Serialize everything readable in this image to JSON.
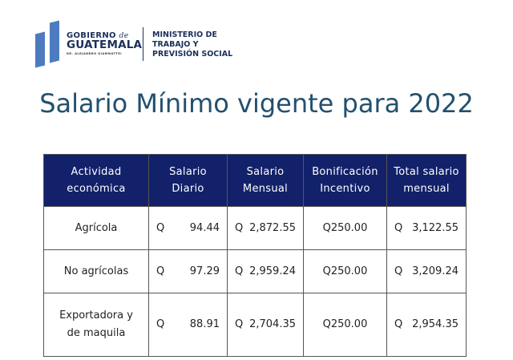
{
  "logo": {
    "gobierno": "GOBIERNO",
    "de": "de",
    "guatemala": "GUATEMALA",
    "president": "DR. ALEJANDRO GIAMMATTEI",
    "ministry": [
      "MINISTERIO DE",
      "TRABAJO Y",
      "PREVISIÓN SOCIAL"
    ]
  },
  "title": "Salario Mínimo vigente para 2022",
  "table": {
    "headers": [
      [
        "Actividad",
        "económica"
      ],
      [
        "Salario",
        "Diario"
      ],
      [
        "Salario",
        "Mensual"
      ],
      [
        "Bonificación",
        "Incentivo"
      ],
      [
        "Total salario",
        "mensual"
      ]
    ],
    "rows": [
      {
        "activity": [
          "Agrícola"
        ],
        "diario": "94.44",
        "mensual": "2,872.55",
        "bonif": "Q250.00",
        "total": "3,122.55"
      },
      {
        "activity": [
          "No agrícolas"
        ],
        "diario": "97.29",
        "mensual": "2,959.24",
        "bonif": "Q250.00",
        "total": "3,209.24"
      },
      {
        "activity": [
          "Exportadora y",
          "de maquila"
        ],
        "diario": "88.91",
        "mensual": "2,704.35",
        "bonif": "Q250.00",
        "total": "2,954.35"
      }
    ],
    "currency": "Q"
  }
}
